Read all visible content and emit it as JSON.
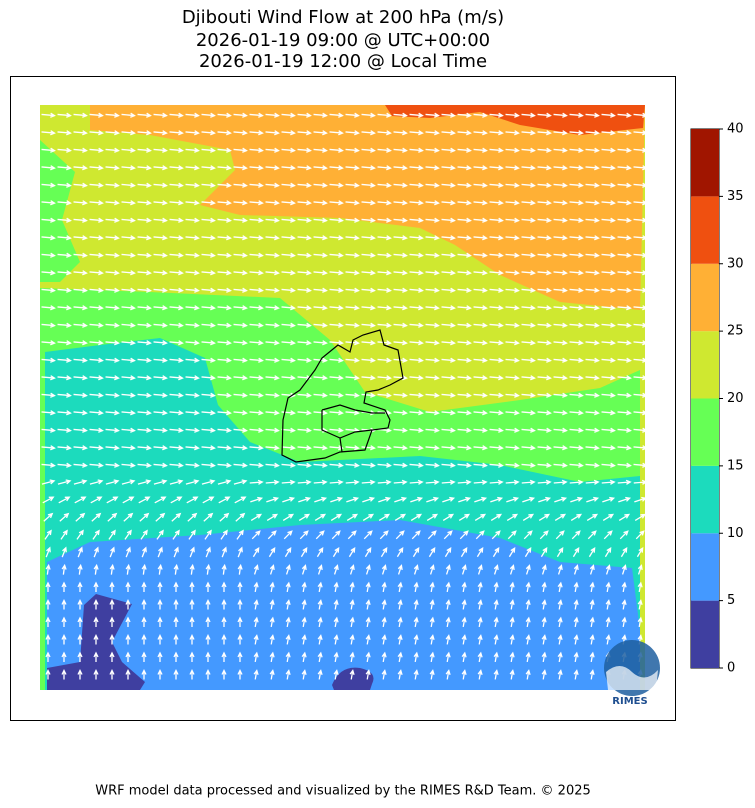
{
  "map": {
    "title": [
      "Djibouti Wind Flow at 200 hPa (m/s)",
      "2026-01-19 09:00 @ UTC+00:00",
      "2026-01-19 12:00 @ Local Time"
    ],
    "colorbar": {
      "lim": [
        0,
        40
      ],
      "ticks": [
        0,
        5,
        10,
        15,
        20,
        25,
        30,
        35,
        40
      ],
      "colors": [
        "#3f3fa0",
        "#4499ff",
        "#1cdbbd",
        "#66ff55",
        "#cfe830",
        "#ffb035",
        "#ef5010",
        "#a01500"
      ]
    },
    "logo_text": "RIMES"
  },
  "footer": "WRF model data processed and visualized by the RIMES R&D Team. © 2025"
}
